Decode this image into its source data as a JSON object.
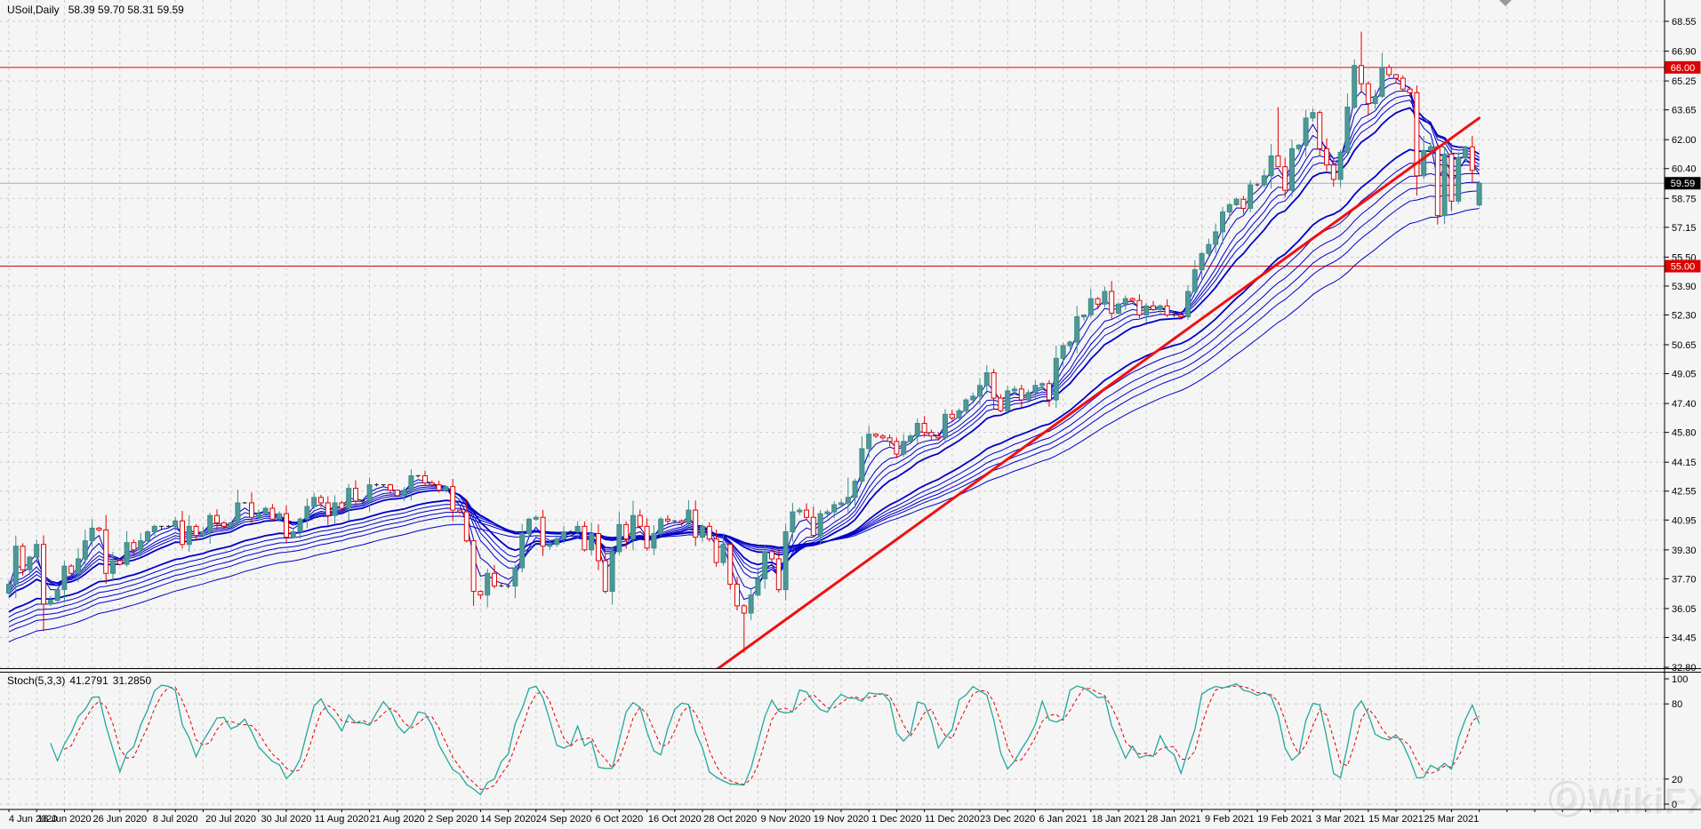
{
  "title": {
    "symbol_period": "USoil,Daily",
    "ohlc": "58.39 59.70 58.31 59.59"
  },
  "watermark": {
    "text": "WikiFX"
  },
  "colors": {
    "background": "#F5F5F5",
    "grid": "#CBCBCB",
    "axis": "#000000",
    "bull": "#4E9896",
    "bull_border": "#3D8A88",
    "bear": "#E00000",
    "doji": "#222222",
    "ribbon": "#0000C8",
    "trendline": "#F01010",
    "level_line": "#DC0000",
    "current_price_line": "#ABABAB",
    "badge_level_bg": "#DC0000",
    "badge_current_bg": "#000000",
    "badge_text": "#FFFFFF",
    "stoch_k": "#22A89C",
    "stoch_d": "#E00000",
    "shift_marker": "#9A9A9A"
  },
  "chart_data": {
    "type": "candlestick_with_indicators",
    "symbol": "USoil",
    "timeframe": "Daily",
    "last_ohlc": {
      "open": 58.39,
      "high": 59.7,
      "low": 58.31,
      "close": 59.59
    },
    "current_price": 59.59,
    "current_price_label": "59.59",
    "y_ticks": [
      68.55,
      66.9,
      65.25,
      63.65,
      62.0,
      60.4,
      58.75,
      57.15,
      55.5,
      53.9,
      52.3,
      50.65,
      49.05,
      47.4,
      45.8,
      44.15,
      42.55,
      40.95,
      39.3,
      37.7,
      36.05,
      34.45,
      32.8
    ],
    "x_labels": [
      "4 Jun 2020",
      "16 Jun 2020",
      "26 Jun 2020",
      "8 Jul 2020",
      "20 Jul 2020",
      "30 Jul 2020",
      "11 Aug 2020",
      "21 Aug 2020",
      "2 Sep 2020",
      "14 Sep 2020",
      "24 Sep 2020",
      "6 Oct 2020",
      "16 Oct 2020",
      "28 Oct 2020",
      "9 Nov 2020",
      "19 Nov 2020",
      "1 Dec 2020",
      "11 Dec 2020",
      "23 Dec 2020",
      "6 Jan 2021",
      "18 Jan 2021",
      "28 Jan 2021",
      "9 Feb 2021",
      "19 Feb 2021",
      "3 Mar 2021",
      "15 Mar 2021",
      "25 Mar 2021"
    ],
    "x_label_every_n_candles": 8,
    "first_open": 36.9,
    "closes": [
      37.4,
      39.5,
      38.2,
      38.9,
      39.6,
      36.3,
      36.5,
      37.1,
      38.4,
      38.0,
      38.8,
      39.8,
      40.5,
      40.4,
      38.0,
      38.7,
      38.5,
      39.7,
      39.3,
      39.8,
      40.3,
      40.6,
      40.6,
      40.6,
      40.9,
      39.6,
      40.6,
      40.1,
      40.3,
      41.2,
      40.8,
      40.6,
      40.8,
      41.9,
      41.9,
      41.1,
      41.3,
      41.6,
      41.0,
      41.3,
      40.0,
      40.3,
      41.0,
      41.7,
      42.2,
      41.9,
      41.2,
      41.9,
      41.6,
      42.7,
      42.0,
      42.0,
      42.9,
      42.9,
      42.9,
      42.6,
      42.3,
      42.6,
      43.4,
      43.4,
      43.0,
      42.9,
      42.6,
      42.8,
      41.5,
      41.4,
      39.8,
      37.0,
      36.8,
      38.0,
      37.3,
      37.3,
      37.3,
      38.3,
      40.2,
      41.0,
      41.1,
      39.5,
      39.6,
      39.9,
      40.3,
      40.3,
      40.6,
      39.3,
      40.2,
      38.7,
      37.0,
      39.2,
      40.7,
      39.9,
      41.2,
      40.6,
      39.4,
      40.2,
      41.0,
      40.9,
      40.9,
      40.8,
      41.5,
      40.0,
      40.6,
      39.9,
      38.6,
      39.6,
      37.4,
      36.2,
      35.8,
      36.8,
      37.7,
      39.2,
      38.8,
      37.1,
      40.3,
      41.4,
      41.5,
      41.1,
      40.1,
      41.3,
      41.4,
      41.8,
      41.9,
      42.2,
      43.1,
      44.9,
      45.7,
      45.6,
      45.5,
      45.3,
      44.6,
      45.3,
      45.6,
      46.3,
      45.8,
      45.6,
      45.5,
      46.8,
      46.6,
      47.0,
      47.6,
      47.8,
      48.4,
      49.1,
      47.7,
      47.0,
      48.1,
      48.2,
      47.6,
      48.0,
      48.4,
      48.5,
      47.6,
      49.9,
      50.6,
      50.8,
      52.2,
      52.3,
      53.2,
      52.9,
      53.6,
      52.4,
      52.9,
      53.2,
      53.1,
      52.3,
      52.8,
      52.6,
      52.8,
      52.3,
      52.3,
      52.2,
      53.6,
      54.8,
      55.7,
      56.2,
      56.9,
      58.0,
      58.4,
      58.7,
      58.2,
      59.5,
      59.5,
      60.0,
      61.1,
      60.5,
      59.2,
      61.5,
      61.7,
      63.2,
      63.5,
      61.5,
      60.6,
      59.8,
      61.3,
      63.8,
      66.1,
      65.1,
      64.0,
      64.4,
      66.0,
      65.6,
      65.4,
      64.8,
      64.6,
      60.0,
      61.4,
      61.6,
      57.8,
      61.2,
      58.6,
      61.0,
      61.6,
      60.3,
      59.59
    ],
    "open_overrides": {
      "212": 58.39
    },
    "wick_overrides": {
      "5": [
        40.1,
        34.8
      ],
      "67": [
        38.2,
        36.2
      ],
      "104": [
        39.7,
        37.1
      ],
      "106": [
        36.3,
        33.6
      ],
      "121": [
        43.3,
        41.3
      ],
      "183": [
        63.8,
        61.0
      ],
      "189": [
        63.6,
        61.1
      ],
      "194": [
        66.45,
        63.7
      ],
      "195": [
        67.98,
        64.6
      ],
      "203": [
        65.0,
        58.9
      ],
      "206": [
        61.8,
        57.3
      ],
      "212": [
        59.7,
        58.31
      ]
    },
    "horizontal_levels": [
      {
        "price": 66.0,
        "label": "66.00"
      },
      {
        "price": 55.0,
        "label": "55.00"
      }
    ],
    "trendline": {
      "from_candle": 102,
      "from_price": 32.66,
      "to_candle": 212,
      "to_price": 63.2
    },
    "ema_periods": [
      3,
      5,
      8,
      10,
      12,
      15,
      30,
      35,
      40,
      45,
      50,
      60
    ],
    "stoch": {
      "label": "Stoch(5,3,3)",
      "params": [
        5,
        3,
        3
      ],
      "k": 41.2791,
      "d": 31.285,
      "k_text": "41.2791",
      "d_text": "31.2850",
      "y_ticks": [
        100,
        80,
        20,
        0
      ],
      "grid_levels": [
        80,
        20,
        0
      ]
    }
  }
}
